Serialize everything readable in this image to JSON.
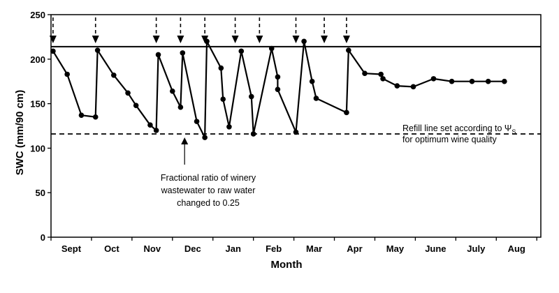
{
  "chart_data": {
    "type": "line",
    "xlabel": "Month",
    "ylabel": "SWC (mm/90 cm)",
    "ylim": [
      0,
      250
    ],
    "yticks": [
      0,
      50,
      100,
      150,
      200,
      250
    ],
    "xlim": [
      0,
      12.1
    ],
    "month_labels": [
      {
        "label": "Sept",
        "x": 0.5
      },
      {
        "label": "Oct",
        "x": 1.5
      },
      {
        "label": "Nov",
        "x": 2.5
      },
      {
        "label": "Dec",
        "x": 3.5
      },
      {
        "label": "Jan",
        "x": 4.5
      },
      {
        "label": "Feb",
        "x": 5.5
      },
      {
        "label": "Mar",
        "x": 6.5
      },
      {
        "label": "Apr",
        "x": 7.5
      },
      {
        "label": "May",
        "x": 8.5
      },
      {
        "label": "June",
        "x": 9.5
      },
      {
        "label": "July",
        "x": 10.5
      },
      {
        "label": "Aug",
        "x": 11.5
      }
    ],
    "series": [
      {
        "name": "SWC",
        "x": [
          0.05,
          0.4,
          0.75,
          1.1,
          1.15,
          1.55,
          1.9,
          2.1,
          2.45,
          2.6,
          2.65,
          3.0,
          3.2,
          3.25,
          3.6,
          3.8,
          3.85,
          4.2,
          4.25,
          4.4,
          4.7,
          4.95,
          5.0,
          5.45,
          5.6,
          5.6,
          6.05,
          6.25,
          6.45,
          6.55,
          7.3,
          7.35,
          7.75,
          8.15,
          8.2,
          8.55,
          8.95,
          9.45,
          9.9,
          10.4,
          10.8,
          11.2
        ],
        "y": [
          209,
          183,
          137,
          135,
          210,
          182,
          162,
          148,
          126,
          120,
          205,
          164,
          146,
          207,
          130,
          112,
          220,
          190,
          155,
          124,
          209,
          158,
          116,
          212,
          180,
          166,
          118,
          220,
          175,
          156,
          140,
          210,
          184,
          183,
          178,
          170,
          169,
          178,
          175,
          175,
          175,
          175
        ]
      }
    ],
    "irrigation_arrows_x": [
      0.05,
      1.1,
      2.6,
      3.2,
      3.8,
      4.55,
      5.15,
      6.05,
      6.75,
      7.3
    ],
    "refill_line_top": 214,
    "refill_line_dashed": 116,
    "annotations": {
      "refill": "Refill line set according to Ψ",
      "refill_subscript": "S",
      "refill_line2": "for optimum wine quality",
      "fraction_line1": "Fractional ratio of winery",
      "fraction_line2": "wastewater to raw water",
      "fraction_line3": "changed to 0.25",
      "fraction_arrow_x": 3.3
    }
  }
}
